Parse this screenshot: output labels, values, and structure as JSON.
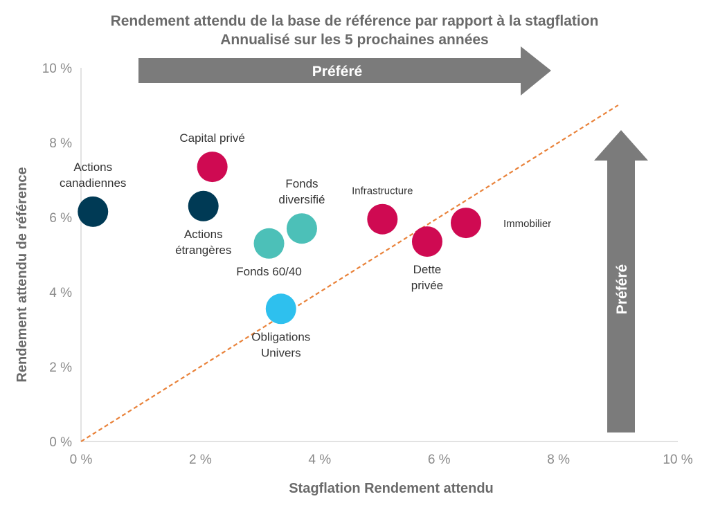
{
  "chart_data": {
    "type": "scatter",
    "title": "Rendement attendu de la base de référence par rapport à la stagflation",
    "subtitle": "Annualisé sur les 5 prochaines années",
    "xlabel": "Stagflation Rendement attendu",
    "ylabel": "Rendement attendu de référence",
    "xlim": [
      0,
      10
    ],
    "ylim": [
      0,
      10
    ],
    "x_ticks": [
      "0 %",
      "2 %",
      "4 %",
      "6 %",
      "8 %",
      "10 %"
    ],
    "y_ticks": [
      "0 %",
      "2 %",
      "4 %",
      "6 %",
      "8 %",
      "10 %"
    ],
    "grid": false,
    "arrows": {
      "horizontal_label": "Préféré",
      "vertical_label": "Préféré"
    },
    "colors": {
      "navy": "#003a55",
      "crimson": "#cf0a52",
      "teal": "#4cc0b8",
      "sky": "#2ec0ee",
      "arrow": "#7b7b7b",
      "diagonal": "#e9823a"
    },
    "points": [
      {
        "label": "Actions canadiennes",
        "x": 0.2,
        "y": 6.15,
        "color": "navy",
        "label_lines": [
          "Actions",
          "canadiennes"
        ],
        "label_pos": "above",
        "small": false
      },
      {
        "label": "Capital privé",
        "x": 2.2,
        "y": 7.35,
        "color": "crimson",
        "label_lines": [
          "Capital privé"
        ],
        "label_pos": "above",
        "small": false
      },
      {
        "label": "Actions étrangères",
        "x": 2.05,
        "y": 6.3,
        "color": "navy",
        "label_lines": [
          "Actions",
          "étrangères"
        ],
        "label_pos": "below",
        "small": false
      },
      {
        "label": "Fonds diversifié",
        "x": 3.7,
        "y": 5.7,
        "color": "teal",
        "label_lines": [
          "Fonds",
          "diversifié"
        ],
        "label_pos": "above",
        "small": false
      },
      {
        "label": "Fonds 60/40",
        "x": 3.15,
        "y": 5.3,
        "color": "teal",
        "label_lines": [
          "Fonds 60/40"
        ],
        "label_pos": "below",
        "small": false
      },
      {
        "label": "Obligations Univers",
        "x": 3.35,
        "y": 3.55,
        "color": "sky",
        "label_lines": [
          "Obligations",
          "Univers"
        ],
        "label_pos": "below",
        "small": false
      },
      {
        "label": "Infrastructure",
        "x": 5.05,
        "y": 5.95,
        "color": "crimson",
        "label_lines": [
          "Infrastructure"
        ],
        "label_pos": "above",
        "small": true
      },
      {
        "label": "Dette privée",
        "x": 5.8,
        "y": 5.35,
        "color": "crimson",
        "label_lines": [
          "Dette",
          "privée"
        ],
        "label_pos": "below",
        "small": false
      },
      {
        "label": "Immobilier",
        "x": 6.45,
        "y": 5.85,
        "color": "crimson",
        "label_lines": [
          "Immobilier"
        ],
        "label_pos": "right",
        "small": true
      }
    ],
    "reference_line": {
      "x": [
        0,
        9
      ],
      "y": [
        0,
        9
      ]
    }
  }
}
